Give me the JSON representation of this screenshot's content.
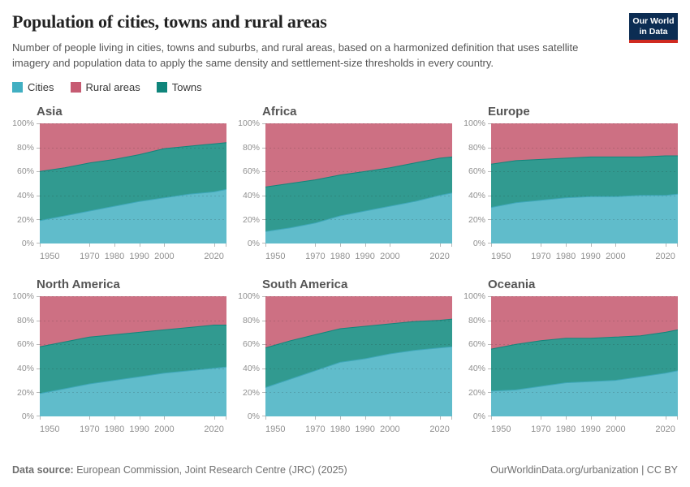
{
  "header": {
    "title": "Population of cities, towns and rural areas",
    "subtitle": "Number of people living in cities, towns and suburbs, and rural areas, based on a harmonized definition that uses satellite imagery and population data to apply the same density and settlement-size thresholds in every country.",
    "logo_line1": "Our World",
    "logo_line2": "in Data"
  },
  "legend": [
    "Cities",
    "Rural areas",
    "Towns"
  ],
  "colors": {
    "Cities": {
      "swatch": "#41afc2",
      "fill": "#60bccb",
      "line": "#3fa8ba"
    },
    "Rural areas": {
      "swatch": "#c65b72",
      "fill": "#cd7083",
      "line": "#c65b72"
    },
    "Towns": {
      "swatch": "#0f857b",
      "fill": "#319a90",
      "line": "#12857b"
    },
    "logo_bg": "#0c2d53",
    "logo_accent": "#d02a20",
    "gridline": "rgba(30,30,30,0.16)",
    "tick": "#b8b8b8"
  },
  "axis": {
    "x_domain": [
      1950,
      2025
    ],
    "x_ticks": [
      1950,
      1970,
      1980,
      1990,
      2000,
      2020
    ],
    "y_ticks": [
      0,
      20,
      40,
      60,
      80,
      100
    ],
    "y_suffix": "%",
    "grid": "dashed"
  },
  "chart_data": [
    {
      "region": "Asia",
      "type": "area",
      "stacked": true,
      "unit": "%",
      "ylim": [
        0,
        100
      ],
      "x": [
        1950,
        1960,
        1970,
        1980,
        1990,
        2000,
        2010,
        2020,
        2025
      ],
      "series": [
        {
          "name": "Cities",
          "values": [
            19,
            23,
            27,
            31,
            35,
            38,
            41,
            43,
            45
          ]
        },
        {
          "name": "Towns",
          "values": [
            41,
            40,
            40,
            39,
            39,
            41,
            40,
            40,
            39
          ]
        },
        {
          "name": "Rural areas",
          "values": [
            40,
            37,
            33,
            30,
            26,
            21,
            19,
            17,
            16
          ]
        }
      ]
    },
    {
      "region": "Africa",
      "type": "area",
      "stacked": true,
      "unit": "%",
      "ylim": [
        0,
        100
      ],
      "x": [
        1950,
        1960,
        1970,
        1980,
        1990,
        2000,
        2010,
        2020,
        2025
      ],
      "series": [
        {
          "name": "Cities",
          "values": [
            10,
            13,
            17,
            23,
            27,
            31,
            35,
            40,
            42
          ]
        },
        {
          "name": "Towns",
          "values": [
            37,
            37,
            36,
            34,
            33,
            32,
            32,
            31,
            30
          ]
        },
        {
          "name": "Rural areas",
          "values": [
            53,
            50,
            47,
            43,
            40,
            37,
            33,
            29,
            28
          ]
        }
      ]
    },
    {
      "region": "Europe",
      "type": "area",
      "stacked": true,
      "unit": "%",
      "ylim": [
        0,
        100
      ],
      "x": [
        1950,
        1960,
        1970,
        1980,
        1990,
        2000,
        2010,
        2020,
        2025
      ],
      "series": [
        {
          "name": "Cities",
          "values": [
            30,
            34,
            36,
            38,
            39,
            39,
            40,
            40,
            41
          ]
        },
        {
          "name": "Towns",
          "values": [
            36,
            35,
            34,
            33,
            33,
            33,
            32,
            33,
            32
          ]
        },
        {
          "name": "Rural areas",
          "values": [
            34,
            31,
            30,
            29,
            28,
            28,
            28,
            27,
            27
          ]
        }
      ]
    },
    {
      "region": "North America",
      "type": "area",
      "stacked": true,
      "unit": "%",
      "ylim": [
        0,
        100
      ],
      "x": [
        1950,
        1960,
        1970,
        1980,
        1990,
        2000,
        2010,
        2020,
        2025
      ],
      "series": [
        {
          "name": "Cities",
          "values": [
            19,
            23,
            27,
            30,
            33,
            36,
            38,
            40,
            41
          ]
        },
        {
          "name": "Towns",
          "values": [
            39,
            39,
            39,
            38,
            37,
            36,
            36,
            36,
            35
          ]
        },
        {
          "name": "Rural areas",
          "values": [
            42,
            38,
            34,
            32,
            30,
            28,
            26,
            24,
            24
          ]
        }
      ]
    },
    {
      "region": "South America",
      "type": "area",
      "stacked": true,
      "unit": "%",
      "ylim": [
        0,
        100
      ],
      "x": [
        1950,
        1960,
        1970,
        1980,
        1990,
        2000,
        2010,
        2020,
        2025
      ],
      "series": [
        {
          "name": "Cities",
          "values": [
            24,
            31,
            38,
            45,
            48,
            52,
            55,
            57,
            58
          ]
        },
        {
          "name": "Towns",
          "values": [
            33,
            32,
            30,
            28,
            27,
            25,
            24,
            23,
            23
          ]
        },
        {
          "name": "Rural areas",
          "values": [
            43,
            37,
            32,
            27,
            25,
            23,
            21,
            20,
            19
          ]
        }
      ]
    },
    {
      "region": "Oceania",
      "type": "area",
      "stacked": true,
      "unit": "%",
      "ylim": [
        0,
        100
      ],
      "x": [
        1950,
        1960,
        1970,
        1980,
        1990,
        2000,
        2010,
        2020,
        2025
      ],
      "series": [
        {
          "name": "Cities",
          "values": [
            21,
            22,
            25,
            28,
            29,
            30,
            33,
            36,
            38
          ]
        },
        {
          "name": "Towns",
          "values": [
            35,
            38,
            38,
            37,
            36,
            36,
            34,
            34,
            34
          ]
        },
        {
          "name": "Rural areas",
          "values": [
            44,
            40,
            37,
            35,
            35,
            34,
            33,
            30,
            28
          ]
        }
      ]
    }
  ],
  "footer": {
    "source_label": "Data source:",
    "source_text": " European Commission, Joint Research Centre (JRC) (2025)",
    "right": "OurWorldinData.org/urbanization | CC BY"
  }
}
